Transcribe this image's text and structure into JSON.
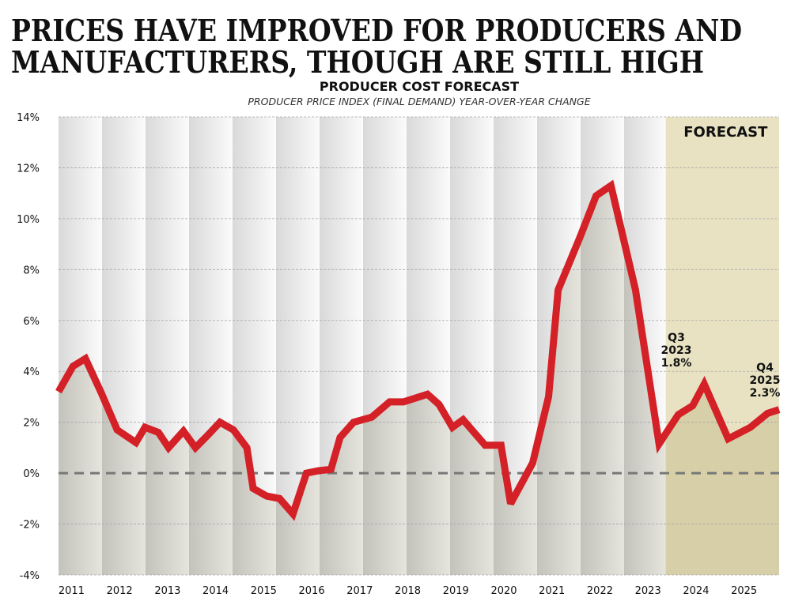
{
  "headline": {
    "line1": "PRICES HAVE IMPROVED FOR PRODUCERS AND",
    "line2": "MANUFACTURERS, THOUGH ARE STILL HIGH"
  },
  "chart_data": {
    "type": "line",
    "title": "PRODUCER COST FORECAST",
    "subtitle": "PRODUCER PRICE INDEX (FINAL DEMAND) YEAR-OVER-YEAR CHANGE",
    "xlabel": "",
    "ylabel": "",
    "xlim": [
      2011,
      2026
    ],
    "ylim": [
      -4,
      14
    ],
    "grid": true,
    "yticks": [
      14,
      12,
      10,
      8,
      6,
      4,
      2,
      0,
      -2,
      -4
    ],
    "ytick_labels": [
      "14%",
      "12%",
      "10%",
      "8%",
      "6%",
      "4%",
      "2%",
      "0%",
      "-2%",
      "-4%"
    ],
    "xtick_labels": [
      "2011",
      "2012",
      "2013",
      "2014",
      "2015",
      "2016",
      "2017",
      "2018",
      "2019",
      "2020",
      "2021",
      "2022",
      "2023",
      "2024",
      "2025"
    ],
    "forecast_start": 2023.64,
    "forecast_label": "FORECAST",
    "colors": {
      "line": "#d42027",
      "forecast_bg": "#e8e2c3",
      "forecast_fill": "#d6cfa8",
      "zero_line": "#777777"
    },
    "series": [
      {
        "x": [
          2011.0,
          2011.3,
          2011.56,
          2011.89,
          2012.22,
          2012.61,
          2012.8,
          2013.08,
          2013.29,
          2013.6,
          2013.85,
          2014.11,
          2014.36,
          2014.64,
          2014.92,
          2015.05,
          2015.33,
          2015.6,
          2015.88,
          2016.16,
          2016.42,
          2016.67,
          2016.86,
          2017.14,
          2017.52,
          2017.89,
          2018.18,
          2018.68,
          2018.92,
          2019.2,
          2019.42,
          2019.88,
          2020.21,
          2020.41,
          2020.87,
          2021.2,
          2021.4,
          2021.86,
          2022.19,
          2022.5,
          2023.01,
          2023.5,
          2023.9,
          2024.2,
          2024.44,
          2024.94,
          2025.4,
          2025.76,
          2026.0
        ],
        "y": [
          3.2,
          4.2,
          4.5,
          3.15,
          1.7,
          1.2,
          1.8,
          1.6,
          1.0,
          1.65,
          1.0,
          1.5,
          2.0,
          1.7,
          1.0,
          -0.6,
          -0.9,
          -1.0,
          -1.6,
          0.0,
          0.1,
          0.15,
          1.4,
          2.0,
          2.2,
          2.8,
          2.8,
          3.1,
          2.7,
          1.8,
          2.1,
          1.1,
          1.1,
          -1.2,
          0.4,
          3.0,
          7.2,
          9.3,
          10.9,
          11.3,
          7.2,
          1.15,
          2.3,
          2.65,
          3.5,
          1.35,
          1.8,
          2.35,
          2.5
        ]
      }
    ],
    "annotations": [
      {
        "lines": [
          "Q3",
          "2023",
          "1.8%"
        ]
      },
      {
        "lines": [
          "Q4",
          "2025",
          "2.3%"
        ]
      }
    ]
  }
}
